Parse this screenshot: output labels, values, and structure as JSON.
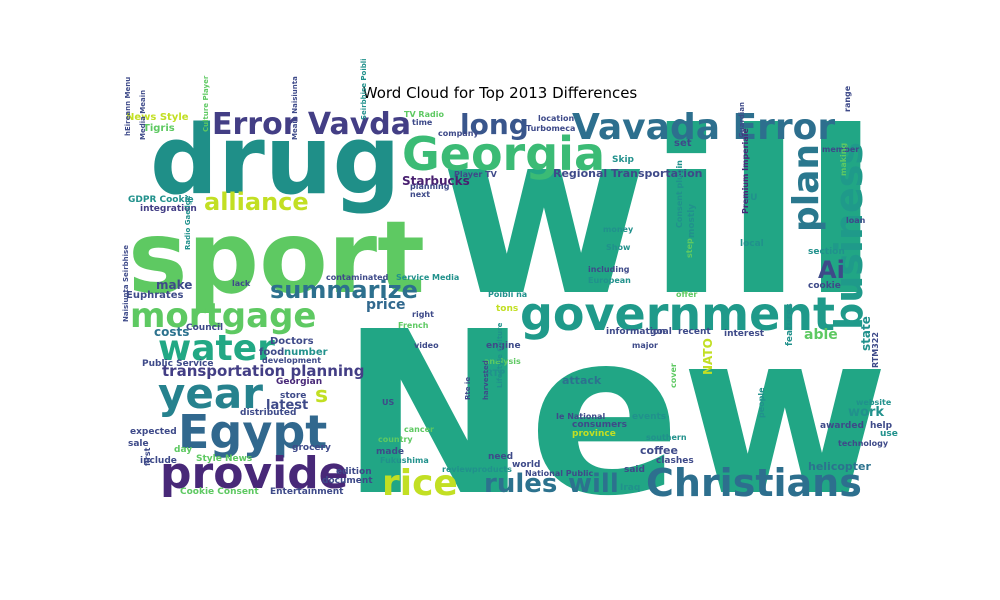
{
  "chart_data": {
    "type": "wordcloud",
    "title": "Word Cloud for Top 2013 Differences",
    "background": "#ffffff",
    "colormap": "viridis",
    "words": [
      {
        "text": "will",
        "color": "#21a685"
      },
      {
        "text": "New",
        "color": "#21a685"
      },
      {
        "text": "sport",
        "color": "#5ec962"
      },
      {
        "text": "drug",
        "color": "#1f8f88"
      },
      {
        "text": "Georgia",
        "color": "#3bbb75"
      },
      {
        "text": "Vavada Error",
        "color": "#2d6f8e"
      },
      {
        "text": "Error Vavda",
        "color": "#433e85"
      },
      {
        "text": "government",
        "color": "#1f9a8a"
      },
      {
        "text": "Egypt",
        "color": "#31688e"
      },
      {
        "text": "Christians",
        "color": "#2d6f8e"
      },
      {
        "text": "provide",
        "color": "#482878"
      },
      {
        "text": "business",
        "color": "#1f9a8a"
      },
      {
        "text": "mortgage",
        "color": "#5ec962"
      },
      {
        "text": "water",
        "color": "#22a884"
      },
      {
        "text": "year",
        "color": "#26828e"
      },
      {
        "text": "plan",
        "color": "#2a788e"
      },
      {
        "text": "rice",
        "color": "#c2df23"
      },
      {
        "text": "alliance",
        "color": "#c2df23"
      },
      {
        "text": "summarize",
        "color": "#2d708e"
      },
      {
        "text": "long",
        "color": "#39568c"
      },
      {
        "text": "rules",
        "color": "#2c728e"
      },
      {
        "text": "will",
        "color": "#2c728e"
      },
      {
        "text": "Ai",
        "color": "#3e4a89"
      },
      {
        "text": "transportation planning",
        "color": "#433e85"
      },
      {
        "text": "Starbucks",
        "color": "#481f70"
      },
      {
        "text": "Regional Transportation",
        "color": "#3e4989"
      },
      {
        "text": "make",
        "color": "#3e4a89"
      },
      {
        "text": "costs",
        "color": "#2c728e"
      },
      {
        "text": "price",
        "color": "#31688e"
      },
      {
        "text": "latest",
        "color": "#3e4a89"
      },
      {
        "text": "s",
        "color": "#c2df23"
      },
      {
        "text": "state",
        "color": "#21918c"
      },
      {
        "text": "work",
        "color": "#21918c"
      },
      {
        "text": "able",
        "color": "#5ec962"
      },
      {
        "text": "NATO",
        "color": "#c2df23"
      },
      {
        "text": "coffee",
        "color": "#3e4a89"
      },
      {
        "text": "attack",
        "color": "#2c728e"
      },
      {
        "text": "helicopter",
        "color": "#2c728e"
      },
      {
        "text": "News Style",
        "color": "#c2df23"
      },
      {
        "text": "Tigris",
        "color": "#5ec962"
      },
      {
        "text": "GDPR Cookie",
        "color": "#21918c"
      },
      {
        "text": "integration",
        "color": "#433e85"
      },
      {
        "text": "Euphrates",
        "color": "#3e4a89"
      },
      {
        "text": "Council",
        "color": "#3e4a89"
      },
      {
        "text": "Public Service",
        "color": "#3e4a89"
      },
      {
        "text": "Doctors",
        "color": "#3e4a89"
      },
      {
        "text": "food",
        "color": "#3e4a89"
      },
      {
        "text": "number",
        "color": "#21918c"
      },
      {
        "text": "development",
        "color": "#3e4a89"
      },
      {
        "text": "Georgian",
        "color": "#482878"
      },
      {
        "text": "store",
        "color": "#3e4a89"
      },
      {
        "text": "distributed",
        "color": "#3e4a89"
      },
      {
        "text": "expected",
        "color": "#3e4a89"
      },
      {
        "text": "sale",
        "color": "#3e4a89"
      },
      {
        "text": "day",
        "color": "#5ec962"
      },
      {
        "text": "grocery",
        "color": "#3e4a89"
      },
      {
        "text": "Style News",
        "color": "#5ec962"
      },
      {
        "text": "include",
        "color": "#3e4a89"
      },
      {
        "text": "Cookie Consent",
        "color": "#5ec962"
      },
      {
        "text": "Entertainment",
        "color": "#3e4a89"
      },
      {
        "text": "edition",
        "color": "#3e4a89"
      },
      {
        "text": "document",
        "color": "#3e4a89"
      },
      {
        "text": "made",
        "color": "#3e4a89"
      },
      {
        "text": "country",
        "color": "#5ec962"
      },
      {
        "text": "US",
        "color": "#3e4a89"
      },
      {
        "text": "Fukushima",
        "color": "#21918c"
      },
      {
        "text": "review",
        "color": "#21918c"
      },
      {
        "text": "products",
        "color": "#21918c"
      },
      {
        "text": "world",
        "color": "#3e4a89"
      },
      {
        "text": "National Public",
        "color": "#3e4a89"
      },
      {
        "text": "Ie National",
        "color": "#3e4a89"
      },
      {
        "text": "consumers",
        "color": "#3e4a89"
      },
      {
        "text": "province",
        "color": "#c2df23"
      },
      {
        "text": "events",
        "color": "#21918c"
      },
      {
        "text": "said",
        "color": "#3e4a89"
      },
      {
        "text": "Iraq",
        "color": "#21918c"
      },
      {
        "text": "clashes",
        "color": "#3e4a89"
      },
      {
        "text": "southern",
        "color": "#21918c"
      },
      {
        "text": "cancer",
        "color": "#5ec962"
      },
      {
        "text": "need",
        "color": "#3e4a89"
      },
      {
        "text": "engine",
        "color": "#3e4a89"
      },
      {
        "text": "RTP",
        "color": "#21918c"
      },
      {
        "text": "analysis",
        "color": "#5ec962"
      },
      {
        "text": "video",
        "color": "#3e4a89"
      },
      {
        "text": "French",
        "color": "#5ec962"
      },
      {
        "text": "information",
        "color": "#3e4a89"
      },
      {
        "text": "goal",
        "color": "#3e4a89"
      },
      {
        "text": "recent",
        "color": "#3e4a89"
      },
      {
        "text": "interest",
        "color": "#3e4a89"
      },
      {
        "text": "major",
        "color": "#3e4a89"
      },
      {
        "text": "tons",
        "color": "#c2df23"
      },
      {
        "text": "right",
        "color": "#3e4a89"
      },
      {
        "text": "Poibli na",
        "color": "#21918c"
      },
      {
        "text": "Service Media",
        "color": "#21918c"
      },
      {
        "text": "contaminated",
        "color": "#3e4a89"
      },
      {
        "text": "lack",
        "color": "#3e4a89"
      },
      {
        "text": "including",
        "color": "#3e4a89"
      },
      {
        "text": "European",
        "color": "#21918c"
      },
      {
        "text": "offer",
        "color": "#5ec962"
      },
      {
        "text": "cookie",
        "color": "#3e4a89"
      },
      {
        "text": "section",
        "color": "#21918c"
      },
      {
        "text": "loan",
        "color": "#3e4a89"
      },
      {
        "text": "local",
        "color": "#21918c"
      },
      {
        "text": "EU",
        "color": "#21918c"
      },
      {
        "text": "Show",
        "color": "#21918c"
      },
      {
        "text": "money",
        "color": "#21918c"
      },
      {
        "text": "mostly",
        "color": "#21918c"
      },
      {
        "text": "set",
        "color": "#3e4a89"
      },
      {
        "text": "Skip",
        "color": "#21918c"
      },
      {
        "text": "location",
        "color": "#3e4a89"
      },
      {
        "text": "Turbomeca",
        "color": "#3e4a89"
      },
      {
        "text": "company",
        "color": "#3e4a89"
      },
      {
        "text": "TV Radio",
        "color": "#5ec962"
      },
      {
        "text": "time",
        "color": "#3e4a89"
      },
      {
        "text": "Player TV",
        "color": "#3e4a89"
      },
      {
        "text": "planning",
        "color": "#3e4a89"
      },
      {
        "text": "next",
        "color": "#3e4a89"
      },
      {
        "text": "member",
        "color": "#3e4a89"
      },
      {
        "text": "making",
        "color": "#5ec962"
      },
      {
        "text": "range",
        "color": "#3e4a89"
      },
      {
        "text": "features",
        "color": "#21918c"
      },
      {
        "text": "awarded",
        "color": "#3e4a89"
      },
      {
        "text": "help",
        "color": "#3e4a89"
      },
      {
        "text": "use",
        "color": "#21918c"
      },
      {
        "text": "technology",
        "color": "#3e4a89"
      },
      {
        "text": "website",
        "color": "#21918c"
      },
      {
        "text": "RTM322",
        "color": "#3e4a89"
      },
      {
        "text": "people",
        "color": "#21918c"
      },
      {
        "text": "cover",
        "color": "#5ec962"
      },
      {
        "text": "Premium Imperiale",
        "color": "#482878"
      },
      {
        "text": "Consent plugin",
        "color": "#21918c"
      },
      {
        "text": "step",
        "color": "#5ec962"
      },
      {
        "text": "Guardian",
        "color": "#3e4a89"
      },
      {
        "text": "Radio Gaeilge",
        "color": "#21918c"
      },
      {
        "text": "Culture Player",
        "color": "#5ec962"
      },
      {
        "text": "Meain Naisiunta",
        "color": "#3e4a89"
      },
      {
        "text": "Seirbhise Poibli",
        "color": "#21918c"
      },
      {
        "text": "Media Meain",
        "color": "#3e4a89"
      },
      {
        "text": "hEireann Menu",
        "color": "#3e4a89"
      },
      {
        "text": "Naisiunta Seirbhise",
        "color": "#3e4a89"
      },
      {
        "text": "Rte ie",
        "color": "#3e4a89"
      },
      {
        "text": "Lifestyle Culture",
        "color": "#21918c"
      },
      {
        "text": "harvested",
        "color": "#3e4a89"
      },
      {
        "text": "first",
        "color": "#3e4a89"
      }
    ]
  }
}
